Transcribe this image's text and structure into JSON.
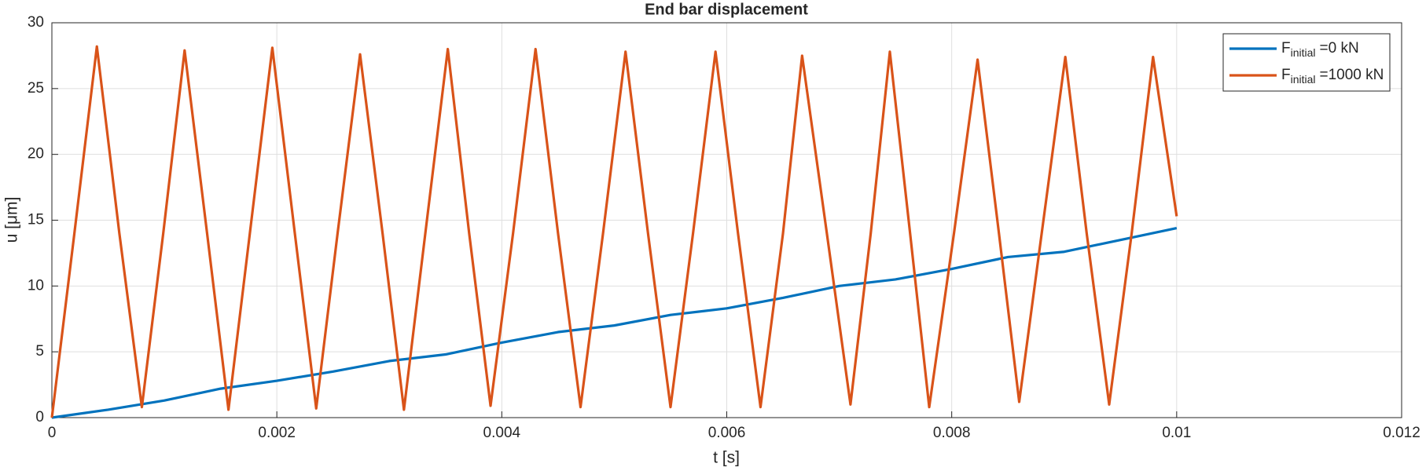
{
  "chart_data": {
    "type": "line",
    "title": "End bar displacement",
    "x_label": "t [s]",
    "y_label": "u [μm]",
    "xlim": [
      0,
      0.012
    ],
    "xticks": [
      0,
      0.002,
      0.004,
      0.006,
      0.008,
      0.01,
      0.012
    ],
    "ylim": [
      0,
      30
    ],
    "yticks": [
      0,
      5,
      10,
      15,
      20,
      25,
      30
    ],
    "grid": true,
    "legend_position": "top-right",
    "series": [
      {
        "name": [
          "F",
          "initial",
          "=0 kN"
        ],
        "color": "#0072BD",
        "x": [
          0,
          0.0005,
          0.001,
          0.0015,
          0.002,
          0.0025,
          0.003,
          0.0035,
          0.004,
          0.0045,
          0.005,
          0.0055,
          0.006,
          0.0065,
          0.007,
          0.0075,
          0.008,
          0.0085,
          0.009,
          0.0095,
          0.01
        ],
        "values": [
          0,
          0.6,
          1.3,
          2.2,
          2.8,
          3.5,
          4.3,
          4.8,
          5.7,
          6.5,
          7.0,
          7.8,
          8.3,
          9.1,
          10.0,
          10.5,
          11.3,
          12.2,
          12.6,
          13.5,
          14.4
        ]
      },
      {
        "name": [
          "F",
          "initial",
          "=1000 kN"
        ],
        "color": "#D95319",
        "x": [
          0,
          0.0002,
          0.0004,
          0.0006,
          0.0008,
          0.00099,
          0.00118,
          0.00138,
          0.00157,
          0.00176,
          0.00196,
          0.00216,
          0.00235,
          0.00254,
          0.00274,
          0.00294,
          0.00313,
          0.00332,
          0.00352,
          0.00371,
          0.0039,
          0.0041,
          0.0043,
          0.0045,
          0.0047,
          0.0049,
          0.0051,
          0.0053,
          0.0055,
          0.0057,
          0.0059,
          0.0061,
          0.0063,
          0.0065,
          0.00667,
          0.00689,
          0.0071,
          0.00728,
          0.00745,
          0.00763,
          0.0078,
          0.00802,
          0.00823,
          0.00842,
          0.0086,
          0.0088,
          0.00901,
          0.0092,
          0.0094,
          0.0096,
          0.00979,
          0.01
        ],
        "values": [
          0,
          14,
          28.2,
          14,
          0.8,
          14,
          27.9,
          14,
          0.6,
          14,
          28.1,
          14,
          0.7,
          14,
          27.6,
          14,
          0.6,
          14,
          28.0,
          14,
          0.9,
          14,
          28.0,
          14,
          0.8,
          14,
          27.8,
          14,
          0.8,
          14,
          27.8,
          14,
          0.8,
          14,
          27.5,
          14,
          1.0,
          14,
          27.8,
          14,
          0.8,
          14,
          27.2,
          14,
          1.2,
          14,
          27.4,
          14,
          1.0,
          14,
          27.4,
          15.3
        ]
      }
    ]
  }
}
